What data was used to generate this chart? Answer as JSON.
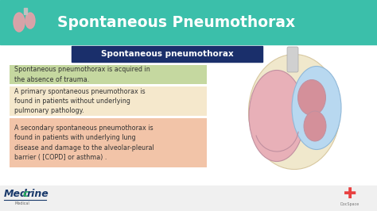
{
  "bg_color": "#f7f7f7",
  "header_color": "#3bbfaa",
  "header_text": "Spontaneous Pneumothorax",
  "header_text_color": "#ffffff",
  "subtitle_box_color": "#1a2f6b",
  "subtitle_text": "Spontaneous pneumothorax",
  "subtitle_text_color": "#ffffff",
  "boxes": [
    {
      "color": "#c5d8a0",
      "text": "Spontaneous pneumothorax is acquired in\nthe absence of trauma.",
      "text_color": "#333333"
    },
    {
      "color": "#f5e8cc",
      "text": "A primary spontaneous pneumothorax is\nfound in patients without underlying\npulmonary pathology.",
      "text_color": "#333333"
    },
    {
      "color": "#f2c4a8",
      "text": "A secondary spontaneous pneumothorax is\nfound in patients with underlying lung\ndisease and damage to the alveolar-pleural\nbarrier ( [COPD] or asthma) .",
      "text_color": "#333333"
    }
  ],
  "medcrine_m_color": "#1a5276",
  "medcrine_c_color": "#27ae60",
  "medcrine_sub": "Medical",
  "docspace_color": "#e84040",
  "docspace_text": "DocSpace",
  "lung_bg": "#f0e8cc",
  "lung_left_color": "#e8b0b8",
  "lung_right_small_color": "#d4909a",
  "pneumo_color": "#b8d8f0",
  "trachea_color": "#d0d0d0"
}
